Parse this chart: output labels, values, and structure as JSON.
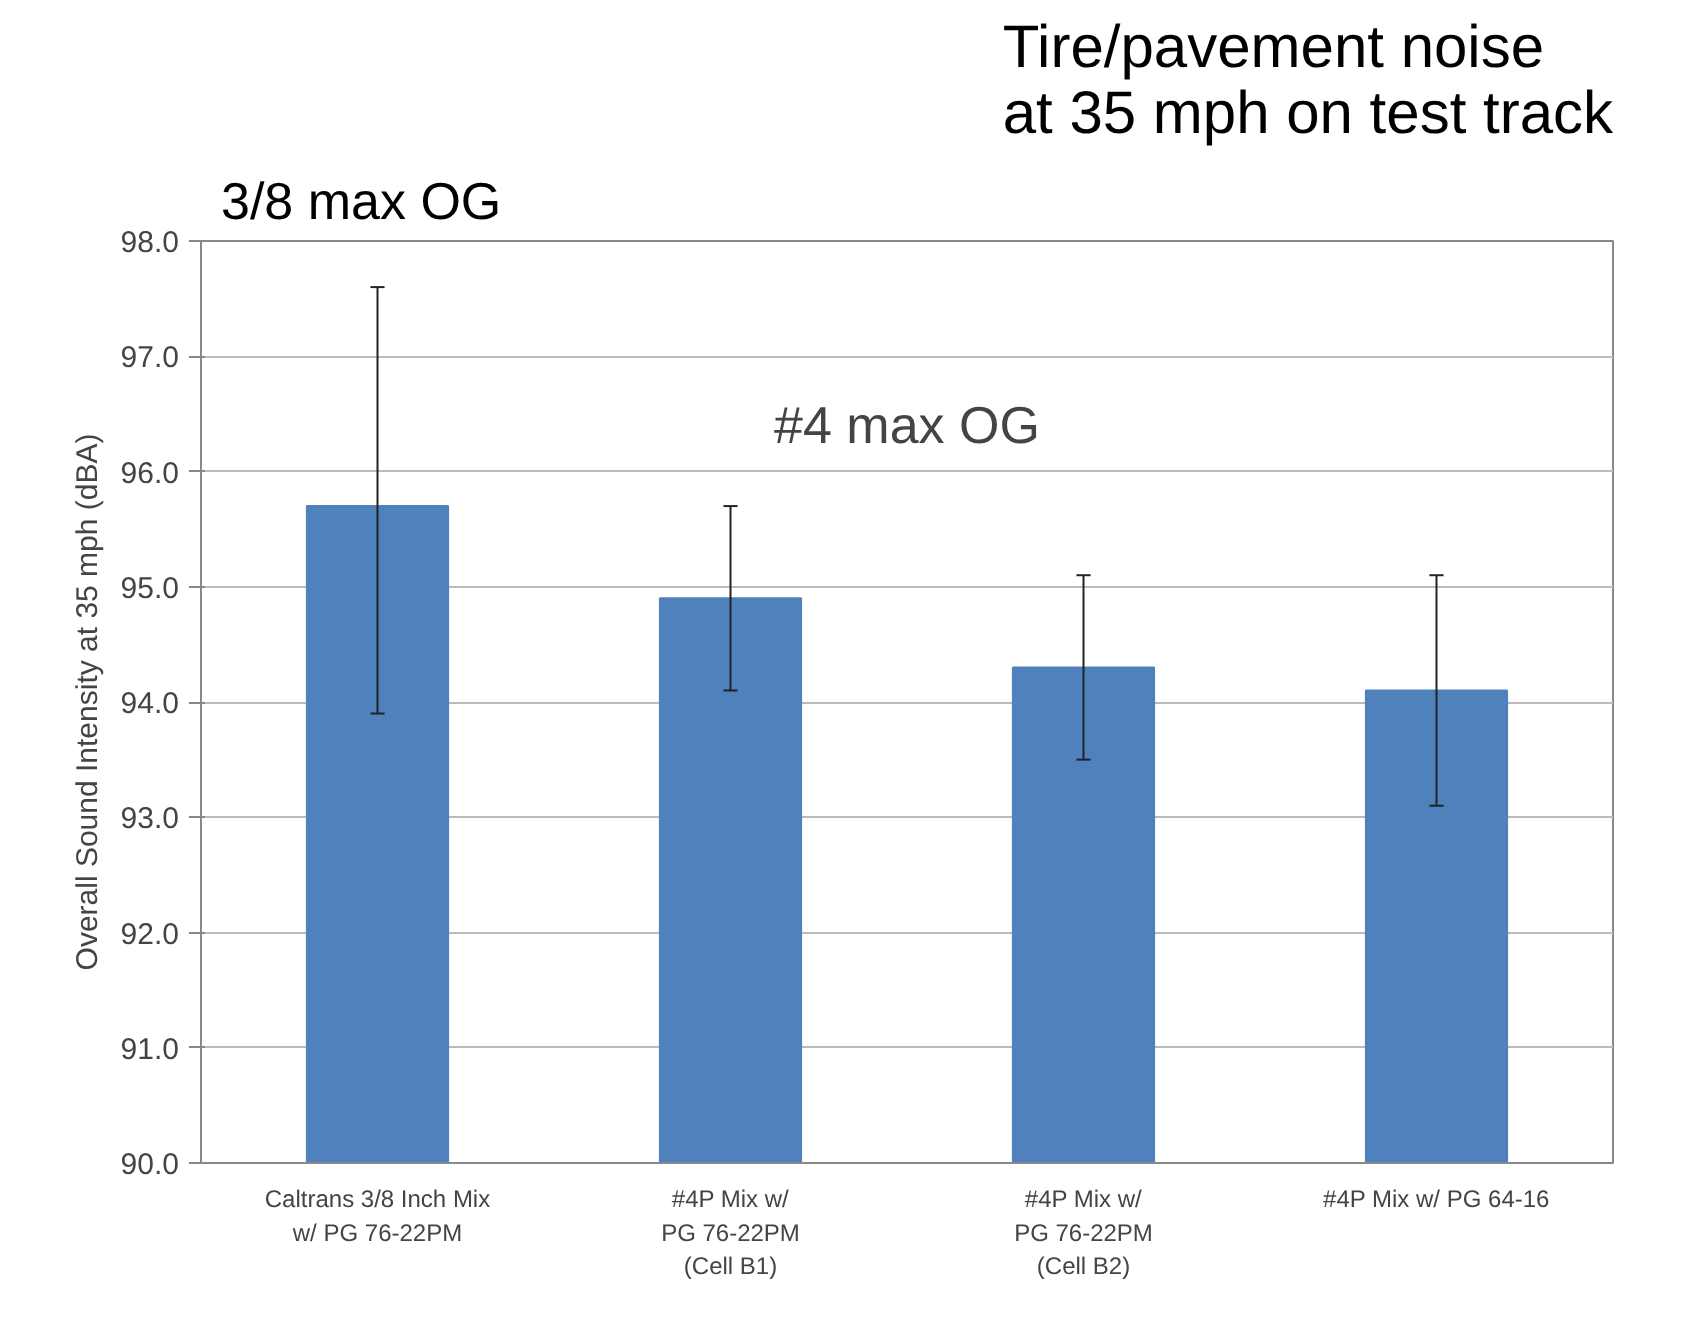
{
  "chart_data": {
    "type": "bar",
    "title": "Tire/pavement noise\nat 35 mph on test track",
    "ylabel": "Overall Sound Intensity at 35 mph (dBA)",
    "categories": [
      "Caltrans 3/8 Inch Mix\nw/ PG 76-22PM",
      "#4P Mix w/\nPG 76-22PM\n(Cell B1)",
      "#4P Mix w/\nPG 76-22PM\n(Cell B2)",
      "#4P Mix w/ PG 64-16"
    ],
    "values": [
      95.7,
      94.9,
      94.3,
      94.1
    ],
    "errors": [
      [
        93.9,
        97.6
      ],
      [
        94.1,
        95.7
      ],
      [
        93.5,
        95.1
      ],
      [
        93.1,
        95.1
      ]
    ],
    "color": "#4f81bd",
    "ylim": [
      90,
      98
    ],
    "yticks": [
      {
        "value": 90,
        "label": "90.0"
      },
      {
        "value": 91,
        "label": "91.0"
      },
      {
        "value": 92,
        "label": "92.0"
      },
      {
        "value": 93,
        "label": "93.0"
      },
      {
        "value": 94,
        "label": "94.0"
      },
      {
        "value": 95,
        "label": "95.0"
      },
      {
        "value": 96,
        "label": "96.0"
      },
      {
        "value": 97,
        "label": "97.0"
      },
      {
        "value": 98,
        "label": "98.0"
      }
    ],
    "grid": "y",
    "annotations": [
      "3/8 max OG",
      "#4 max OG"
    ]
  }
}
